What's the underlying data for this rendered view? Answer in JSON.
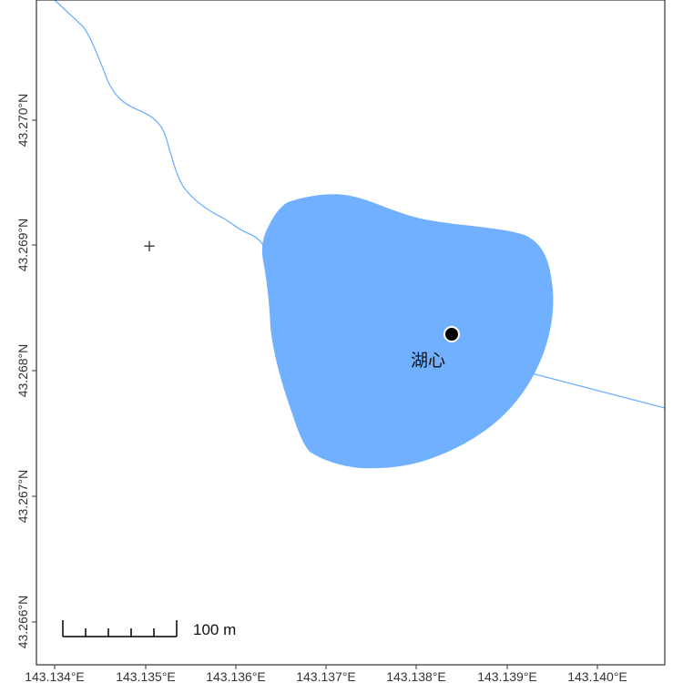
{
  "map": {
    "x_ticks": [
      "143.134°E",
      "143.135°E",
      "143.136°E",
      "143.137°E",
      "143.138°E",
      "143.139°E",
      "143.140°E"
    ],
    "y_ticks": [
      "43.270°N",
      "43.269°N",
      "43.268°N",
      "43.267°N",
      "43.266°N"
    ],
    "colors": {
      "water": "#70b0ff",
      "stream": "#70b0ff",
      "frame": "#333333",
      "point": "#000000"
    },
    "place_label": "湖心",
    "marker_symbol": "+",
    "scale_bar": {
      "label": "100 m"
    }
  }
}
